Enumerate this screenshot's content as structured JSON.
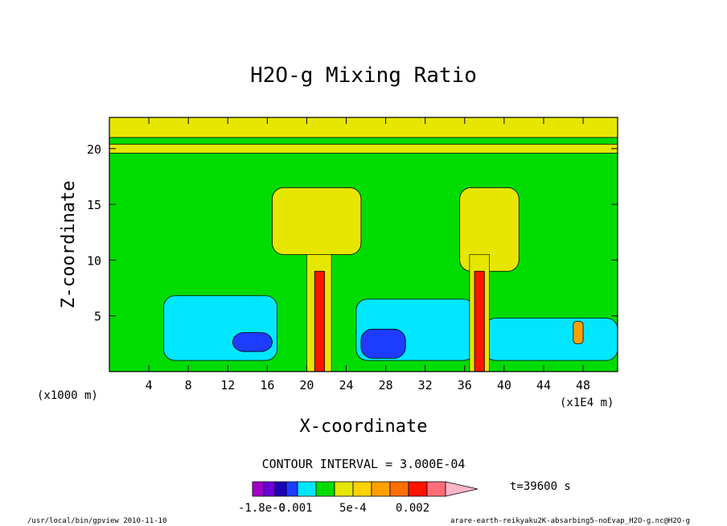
{
  "chart_data": {
    "type": "heatmap",
    "title": "H2O-g Mixing Ratio",
    "xlabel": "X-coordinate",
    "ylabel": "Z-coordinate",
    "x_unit_label": "(x1000 m)",
    "y_unit_label": "(x1E4 m)",
    "xlim": [
      0,
      51.5
    ],
    "ylim": [
      0,
      22.8
    ],
    "x_ticks": [
      4,
      8,
      12,
      16,
      20,
      24,
      28,
      32,
      36,
      40,
      44,
      48
    ],
    "x_tick_labels": [
      "4",
      "8",
      "12",
      "16",
      "20",
      "24",
      "28",
      "32",
      "36",
      "40",
      "44",
      "48"
    ],
    "y_ticks": [
      5,
      10,
      15,
      20
    ],
    "y_tick_labels": [
      "5",
      "10",
      "15",
      "20"
    ],
    "contour_interval_text": "CONTOUR INTERVAL = 3.000E-04",
    "contour_interval": 0.0003,
    "color_levels": [
      {
        "color": "#a000c8"
      },
      {
        "color": "#6e00dc"
      },
      {
        "color": "#1e00b4"
      },
      {
        "color": "#1e3cff"
      },
      {
        "color": "#00e6ff"
      },
      {
        "color": "#00dc00"
      },
      {
        "color": "#e6e600"
      },
      {
        "color": "#ffd200"
      },
      {
        "color": "#ff9f00"
      },
      {
        "color": "#ff6e00"
      },
      {
        "color": "#ff1400"
      },
      {
        "color": "#ff6e78"
      },
      {
        "color": "#ffb4c8"
      }
    ],
    "colorbar_labels": [
      "-1.8e-0",
      "-0.001",
      "5e-4",
      "0.002"
    ],
    "time_label": "t=39600 s",
    "regions": [
      {
        "name": "background",
        "level": "green"
      },
      {
        "name": "upper-band-22",
        "level": "yellow",
        "x": [
          0,
          51.5
        ],
        "y": [
          21.0,
          22.8
        ]
      },
      {
        "name": "upper-band-20",
        "level": "yellow",
        "x": [
          0,
          51.5
        ],
        "y": [
          19.6,
          20.4
        ]
      },
      {
        "name": "anvil-left",
        "level": "yellow",
        "x": [
          16.5,
          25.5
        ],
        "y": [
          10.5,
          16.5
        ]
      },
      {
        "name": "anvil-right",
        "level": "yellow",
        "x": [
          35.5,
          41.5
        ],
        "y": [
          9.0,
          16.5
        ]
      },
      {
        "name": "moist-low-left",
        "level": "cyan",
        "x": [
          5.5,
          17.0
        ],
        "y": [
          1.0,
          6.8
        ]
      },
      {
        "name": "moist-low-mid",
        "level": "cyan",
        "x": [
          25.0,
          37.0
        ],
        "y": [
          1.0,
          6.5
        ]
      },
      {
        "name": "moist-low-right",
        "level": "cyan",
        "x": [
          38.0,
          51.5
        ],
        "y": [
          1.0,
          4.8
        ]
      },
      {
        "name": "core-left",
        "level": "blue",
        "x": [
          12.5,
          16.5
        ],
        "y": [
          1.8,
          3.5
        ]
      },
      {
        "name": "core-mid",
        "level": "blue",
        "x": [
          25.5,
          30.0
        ],
        "y": [
          1.2,
          3.8
        ]
      },
      {
        "name": "updraft-left",
        "level": "red",
        "x": [
          20.8,
          21.8
        ],
        "y": [
          0,
          9.0
        ]
      },
      {
        "name": "updraft-right",
        "level": "red",
        "x": [
          37.0,
          38.0
        ],
        "y": [
          0,
          9.0
        ]
      },
      {
        "name": "small-cell",
        "level": "orange",
        "x": [
          47.0,
          48.0
        ],
        "y": [
          2.5,
          4.5
        ]
      }
    ]
  },
  "footer": {
    "left": "/usr/local/bin/gpview  2010-11-10",
    "right": "arare-earth-reikyaku2K-absarbing5-noEvap_H2O-g.nc@H2O-g"
  }
}
